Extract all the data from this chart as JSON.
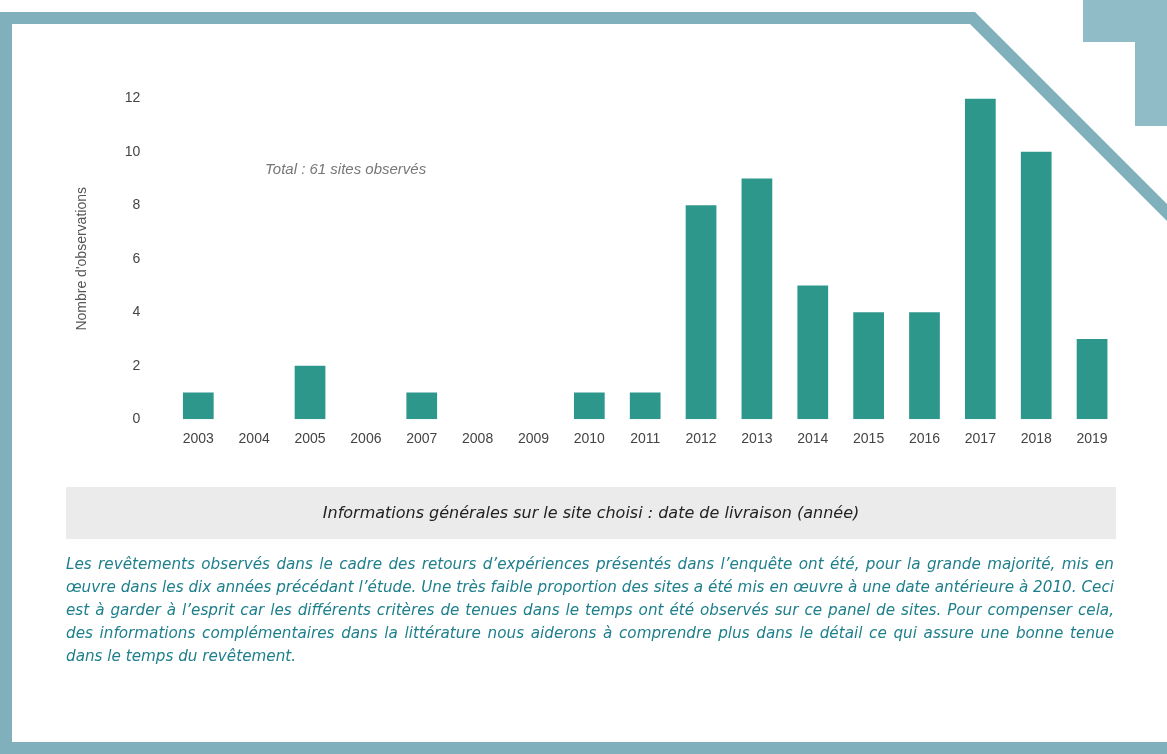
{
  "chart_data": {
    "type": "bar",
    "ylabel": "Nombre d'observations",
    "categories": [
      "2003",
      "2004",
      "2005",
      "2006",
      "2007",
      "2008",
      "2009",
      "2010",
      "2011",
      "2012",
      "2013",
      "2014",
      "2015",
      "2016",
      "2017",
      "2018",
      "2019"
    ],
    "values": [
      1,
      0,
      2,
      0,
      1,
      0,
      0,
      1,
      1,
      8,
      9,
      5,
      4,
      4,
      12,
      10,
      3
    ],
    "color": "#2e978c",
    "ylim": [
      0,
      12
    ],
    "yticks": [
      0,
      2,
      4,
      6,
      8,
      10,
      12
    ],
    "annotations": [
      "Total : 61 sites observés",
      "Informations générales sur le site choisi : date de livraison (année)",
      "Les revêtements observés dans le cadre des retours d’expériences présentés dans l’enquête ont été, pour la grande majorité, mis en œuvre dans les dix années précédant l’étude. Une très faible proportion des sites a été mis en œuvre à une date antérieure à 2010. Ceci est à garder à l’esprit car les différents critères de tenues dans le temps ont été observés sur ce panel de sites. Pour compenser cela, des informations complémentaires dans la littérature nous aiderons à comprendre plus dans le détail ce qui assure une bonne tenue dans le temps du revêtement."
    ]
  }
}
